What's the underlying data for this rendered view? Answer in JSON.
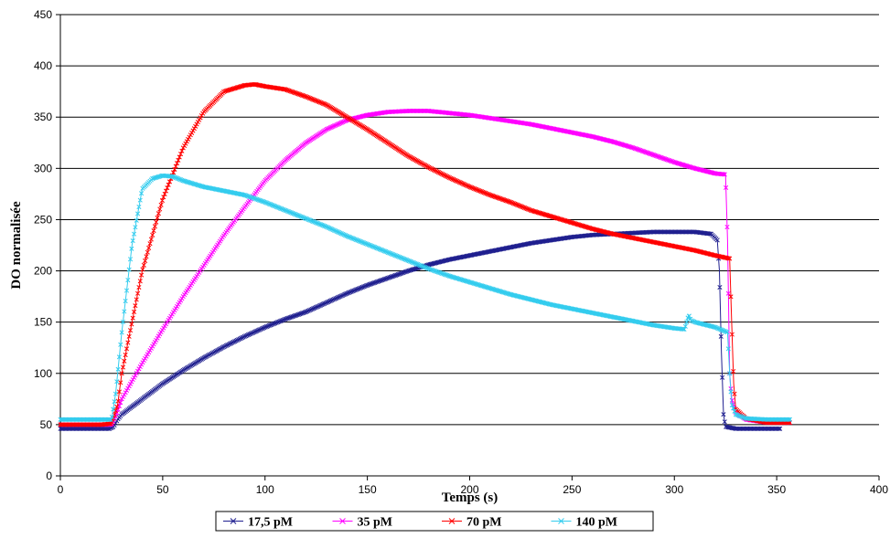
{
  "chart_data": {
    "type": "scatter",
    "title": "",
    "xlabel": "Temps (s)",
    "ylabel": "DO normalisée",
    "xlim": [
      0,
      400
    ],
    "ylim": [
      0,
      450
    ],
    "xticks": [
      0,
      50,
      100,
      150,
      200,
      250,
      300,
      350,
      400
    ],
    "yticks": [
      0,
      50,
      100,
      150,
      200,
      250,
      300,
      350,
      400,
      450
    ],
    "grid": "horizontal",
    "legend_position": "bottom",
    "marker": "x",
    "series": [
      {
        "name": "17,5 pM",
        "color": "#1f1f8f",
        "points": [
          [
            0,
            46
          ],
          [
            10,
            46
          ],
          [
            20,
            46
          ],
          [
            24,
            46
          ],
          [
            26,
            48
          ],
          [
            28,
            55
          ],
          [
            30,
            60
          ],
          [
            40,
            75
          ],
          [
            50,
            90
          ],
          [
            60,
            103
          ],
          [
            70,
            115
          ],
          [
            80,
            126
          ],
          [
            90,
            136
          ],
          [
            100,
            145
          ],
          [
            110,
            153
          ],
          [
            120,
            160
          ],
          [
            130,
            169
          ],
          [
            140,
            178
          ],
          [
            150,
            186
          ],
          [
            160,
            193
          ],
          [
            170,
            200
          ],
          [
            180,
            206
          ],
          [
            190,
            211
          ],
          [
            200,
            215
          ],
          [
            210,
            219
          ],
          [
            220,
            223
          ],
          [
            230,
            227
          ],
          [
            240,
            230
          ],
          [
            250,
            233
          ],
          [
            260,
            235
          ],
          [
            270,
            236
          ],
          [
            280,
            237
          ],
          [
            290,
            238
          ],
          [
            300,
            238
          ],
          [
            310,
            238
          ],
          [
            318,
            236
          ],
          [
            321,
            230
          ],
          [
            322,
            200
          ],
          [
            323,
            120
          ],
          [
            324,
            60
          ],
          [
            325,
            48
          ],
          [
            330,
            46
          ],
          [
            340,
            46
          ],
          [
            352,
            46
          ]
        ]
      },
      {
        "name": "35 pM",
        "color": "#ff00ff",
        "points": [
          [
            0,
            50
          ],
          [
            10,
            50
          ],
          [
            20,
            50
          ],
          [
            25,
            50
          ],
          [
            27,
            58
          ],
          [
            30,
            75
          ],
          [
            40,
            110
          ],
          [
            50,
            143
          ],
          [
            60,
            175
          ],
          [
            70,
            205
          ],
          [
            80,
            235
          ],
          [
            90,
            262
          ],
          [
            100,
            288
          ],
          [
            110,
            308
          ],
          [
            120,
            325
          ],
          [
            130,
            338
          ],
          [
            140,
            347
          ],
          [
            150,
            352
          ],
          [
            160,
            355
          ],
          [
            170,
            356
          ],
          [
            180,
            356
          ],
          [
            190,
            354
          ],
          [
            200,
            352
          ],
          [
            210,
            349
          ],
          [
            220,
            346
          ],
          [
            230,
            343
          ],
          [
            240,
            339
          ],
          [
            250,
            335
          ],
          [
            260,
            331
          ],
          [
            270,
            326
          ],
          [
            280,
            320
          ],
          [
            290,
            313
          ],
          [
            300,
            306
          ],
          [
            310,
            300
          ],
          [
            320,
            295
          ],
          [
            325,
            294
          ],
          [
            326,
            230
          ],
          [
            327,
            100
          ],
          [
            328,
            75
          ],
          [
            330,
            62
          ],
          [
            335,
            55
          ],
          [
            345,
            52
          ],
          [
            357,
            52
          ]
        ]
      },
      {
        "name": "70 pM",
        "color": "#ff0000",
        "points": [
          [
            0,
            50
          ],
          [
            10,
            50
          ],
          [
            20,
            50
          ],
          [
            25,
            51
          ],
          [
            28,
            70
          ],
          [
            30,
            100
          ],
          [
            35,
            150
          ],
          [
            40,
            200
          ],
          [
            50,
            270
          ],
          [
            60,
            320
          ],
          [
            70,
            355
          ],
          [
            80,
            375
          ],
          [
            90,
            381
          ],
          [
            95,
            382
          ],
          [
            100,
            380
          ],
          [
            110,
            377
          ],
          [
            120,
            370
          ],
          [
            130,
            362
          ],
          [
            140,
            350
          ],
          [
            150,
            338
          ],
          [
            160,
            325
          ],
          [
            170,
            312
          ],
          [
            180,
            301
          ],
          [
            190,
            291
          ],
          [
            200,
            282
          ],
          [
            210,
            274
          ],
          [
            220,
            267
          ],
          [
            230,
            259
          ],
          [
            240,
            253
          ],
          [
            250,
            247
          ],
          [
            260,
            241
          ],
          [
            270,
            236
          ],
          [
            280,
            232
          ],
          [
            290,
            228
          ],
          [
            300,
            224
          ],
          [
            310,
            220
          ],
          [
            320,
            215
          ],
          [
            327,
            212
          ],
          [
            328,
            150
          ],
          [
            329,
            90
          ],
          [
            330,
            65
          ],
          [
            335,
            56
          ],
          [
            345,
            52
          ],
          [
            357,
            52
          ]
        ]
      },
      {
        "name": "140 pM",
        "color": "#33ccee",
        "points": [
          [
            0,
            55
          ],
          [
            10,
            55
          ],
          [
            20,
            55
          ],
          [
            25,
            55
          ],
          [
            27,
            80
          ],
          [
            30,
            140
          ],
          [
            35,
            225
          ],
          [
            40,
            280
          ],
          [
            45,
            290
          ],
          [
            50,
            293
          ],
          [
            55,
            292
          ],
          [
            60,
            288
          ],
          [
            70,
            282
          ],
          [
            80,
            278
          ],
          [
            90,
            274
          ],
          [
            100,
            267
          ],
          [
            110,
            259
          ],
          [
            120,
            251
          ],
          [
            130,
            243
          ],
          [
            140,
            234
          ],
          [
            150,
            226
          ],
          [
            160,
            218
          ],
          [
            170,
            210
          ],
          [
            180,
            202
          ],
          [
            190,
            195
          ],
          [
            200,
            189
          ],
          [
            210,
            183
          ],
          [
            220,
            177
          ],
          [
            230,
            172
          ],
          [
            240,
            167
          ],
          [
            250,
            163
          ],
          [
            260,
            159
          ],
          [
            270,
            155
          ],
          [
            280,
            151
          ],
          [
            290,
            147
          ],
          [
            300,
            144
          ],
          [
            305,
            143
          ],
          [
            307,
            157
          ],
          [
            308,
            152
          ],
          [
            310,
            150
          ],
          [
            320,
            145
          ],
          [
            326,
            140
          ],
          [
            327,
            100
          ],
          [
            328,
            70
          ],
          [
            330,
            60
          ],
          [
            335,
            56
          ],
          [
            345,
            55
          ],
          [
            357,
            55
          ]
        ]
      }
    ]
  }
}
